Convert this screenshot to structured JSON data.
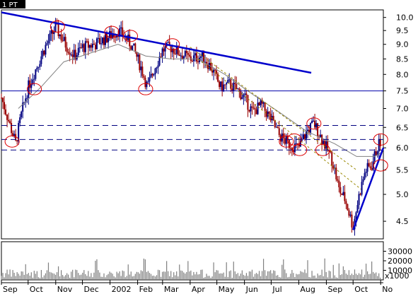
{
  "header": {
    "chip_label": "1 PT",
    "colors": {
      "chip_bg": "#000000",
      "chip_text": "#ffffff"
    }
  },
  "chart_data": {
    "type": "candlestick",
    "price_scale": "log",
    "price_ylim": [
      4.2,
      10.3
    ],
    "y_ticks": [
      4.5,
      5.0,
      5.5,
      6.0,
      6.5,
      7.0,
      7.5,
      8.0,
      8.5,
      9.0,
      9.5,
      10.0
    ],
    "y_tick_labels": [
      "4.5",
      "5.0",
      "5.5",
      "6.0",
      "6.5",
      "7.0",
      "7.5",
      "8.0",
      "8.5",
      "9.0",
      "9.5",
      "10.0"
    ],
    "x_range": [
      "2001-09-01",
      "2002-11-04"
    ],
    "x_ticks": [
      {
        "label": "Sep",
        "date": "2001-09-01"
      },
      {
        "label": "Oct",
        "date": "2001-10-01"
      },
      {
        "label": "Nov",
        "date": "2001-11-01"
      },
      {
        "label": "Dec",
        "date": "2001-12-01"
      },
      {
        "label": "2002",
        "date": "2002-01-01"
      },
      {
        "label": "Feb",
        "date": "2002-02-01"
      },
      {
        "label": "Mar",
        "date": "2002-03-01"
      },
      {
        "label": "Apr",
        "date": "2002-04-01"
      },
      {
        "label": "May",
        "date": "2002-05-01"
      },
      {
        "label": "Jun",
        "date": "2002-06-01"
      },
      {
        "label": "Jul",
        "date": "2002-07-01"
      },
      {
        "label": "Aug",
        "date": "2002-08-01"
      },
      {
        "label": "Sep",
        "date": "2002-09-01"
      },
      {
        "label": "Oct",
        "date": "2002-10-01"
      },
      {
        "label": "No",
        "date": "2002-11-01"
      }
    ],
    "price_path": [
      [
        "2001-09-01",
        7.3
      ],
      [
        "2001-09-10",
        6.6
      ],
      [
        "2001-09-17",
        6.1
      ],
      [
        "2001-09-24",
        6.9
      ],
      [
        "2001-10-01",
        7.6
      ],
      [
        "2001-10-10",
        8.2
      ],
      [
        "2001-10-20",
        8.9
      ],
      [
        "2001-11-01",
        9.6
      ],
      [
        "2001-11-12",
        9.0
      ],
      [
        "2001-11-22",
        8.6
      ],
      [
        "2001-12-01",
        8.9
      ],
      [
        "2001-12-15",
        9.0
      ],
      [
        "2002-01-01",
        9.3
      ],
      [
        "2002-01-10",
        9.5
      ],
      [
        "2002-01-20",
        9.2
      ],
      [
        "2002-01-28",
        8.8
      ],
      [
        "2002-02-05",
        8.2
      ],
      [
        "2002-02-12",
        7.6
      ],
      [
        "2002-02-20",
        8.2
      ],
      [
        "2002-03-01",
        8.8
      ],
      [
        "2002-03-10",
        8.9
      ],
      [
        "2002-03-20",
        8.7
      ],
      [
        "2002-04-01",
        8.5
      ],
      [
        "2002-04-15",
        8.6
      ],
      [
        "2002-04-25",
        8.2
      ],
      [
        "2002-05-05",
        7.6
      ],
      [
        "2002-05-15",
        7.7
      ],
      [
        "2002-05-25",
        7.5
      ],
      [
        "2002-06-01",
        7.3
      ],
      [
        "2002-06-10",
        6.9
      ],
      [
        "2002-06-20",
        7.1
      ],
      [
        "2002-07-01",
        6.7
      ],
      [
        "2002-07-10",
        6.3
      ],
      [
        "2002-07-20",
        6.1
      ],
      [
        "2002-08-01",
        6.0
      ],
      [
        "2002-08-10",
        6.4
      ],
      [
        "2002-08-18",
        6.6
      ],
      [
        "2002-08-25",
        6.3
      ],
      [
        "2002-09-01",
        6.0
      ],
      [
        "2002-09-08",
        5.7
      ],
      [
        "2002-09-15",
        5.1
      ],
      [
        "2002-09-22",
        4.9
      ],
      [
        "2002-10-01",
        4.4
      ],
      [
        "2002-10-08",
        5.0
      ],
      [
        "2002-10-15",
        5.5
      ],
      [
        "2002-10-22",
        5.6
      ],
      [
        "2002-10-28",
        6.0
      ],
      [
        "2002-11-02",
        6.2
      ]
    ],
    "moving_average": [
      [
        "2001-09-20",
        7.0
      ],
      [
        "2001-10-15",
        7.6
      ],
      [
        "2001-11-10",
        8.4
      ],
      [
        "2001-12-10",
        8.7
      ],
      [
        "2002-01-10",
        9.0
      ],
      [
        "2002-02-10",
        8.6
      ],
      [
        "2002-03-10",
        8.5
      ],
      [
        "2002-04-10",
        8.5
      ],
      [
        "2002-05-10",
        8.0
      ],
      [
        "2002-06-10",
        7.4
      ],
      [
        "2002-07-10",
        6.9
      ],
      [
        "2002-08-10",
        6.4
      ],
      [
        "2002-09-10",
        6.1
      ],
      [
        "2002-10-05",
        5.8
      ],
      [
        "2002-10-25",
        5.8
      ],
      [
        "2002-11-03",
        5.9
      ]
    ],
    "overlays": {
      "resistance_trendline": {
        "from": [
          "2001-09-01",
          10.2
        ],
        "to": [
          "2002-08-15",
          8.05
        ],
        "color": "#0000cc"
      },
      "support_trendline": {
        "from": [
          "2002-10-01",
          4.35
        ],
        "to": [
          "2002-11-04",
          6.0
        ],
        "color": "#0000cc"
      },
      "horizontal_solid": [
        {
          "y": 7.5,
          "color": "#0000aa"
        }
      ],
      "horizontal_dashed": [
        {
          "y": 6.55,
          "color": "#000080"
        },
        {
          "y": 6.2,
          "color": "#000080"
        },
        {
          "y": 5.95,
          "color": "#000080"
        }
      ],
      "channel_dotted": [
        {
          "from": [
            "2002-04-01",
            8.9
          ],
          "to": [
            "2002-10-05",
            5.5
          ],
          "color": "#998800"
        },
        {
          "from": [
            "2002-04-10",
            8.5
          ],
          "to": [
            "2002-10-10",
            5.1
          ],
          "color": "#998800"
        }
      ],
      "circle_markers": [
        {
          "date": "2001-09-13",
          "y": 6.15
        },
        {
          "date": "2001-10-08",
          "y": 7.55
        },
        {
          "date": "2001-11-03",
          "y": 9.65
        },
        {
          "date": "2002-01-03",
          "y": 9.45
        },
        {
          "date": "2002-01-24",
          "y": 9.3
        },
        {
          "date": "2002-02-10",
          "y": 7.55
        },
        {
          "date": "2002-03-12",
          "y": 9.0
        },
        {
          "date": "2002-07-18",
          "y": 6.15
        },
        {
          "date": "2002-07-27",
          "y": 6.2
        },
        {
          "date": "2002-08-02",
          "y": 5.95
        },
        {
          "date": "2002-08-18",
          "y": 6.6
        },
        {
          "date": "2002-08-28",
          "y": 5.95
        },
        {
          "date": "2002-11-01",
          "y": 6.2
        },
        {
          "date": "2002-11-01",
          "y": 5.6
        }
      ],
      "circle_color": "#dd0000"
    },
    "volume": {
      "ticks": [
        10000,
        20000,
        30000
      ],
      "tick_labels": [
        "10000",
        "20000",
        "30000"
      ],
      "unit_label": "x1000",
      "ylim": [
        0,
        40000
      ],
      "color": "#808080"
    },
    "colors": {
      "up_candle": "#000080",
      "down_candle": "#990000",
      "moving_average": "#808080",
      "axis": "#000000",
      "background": "#ffffff"
    }
  }
}
